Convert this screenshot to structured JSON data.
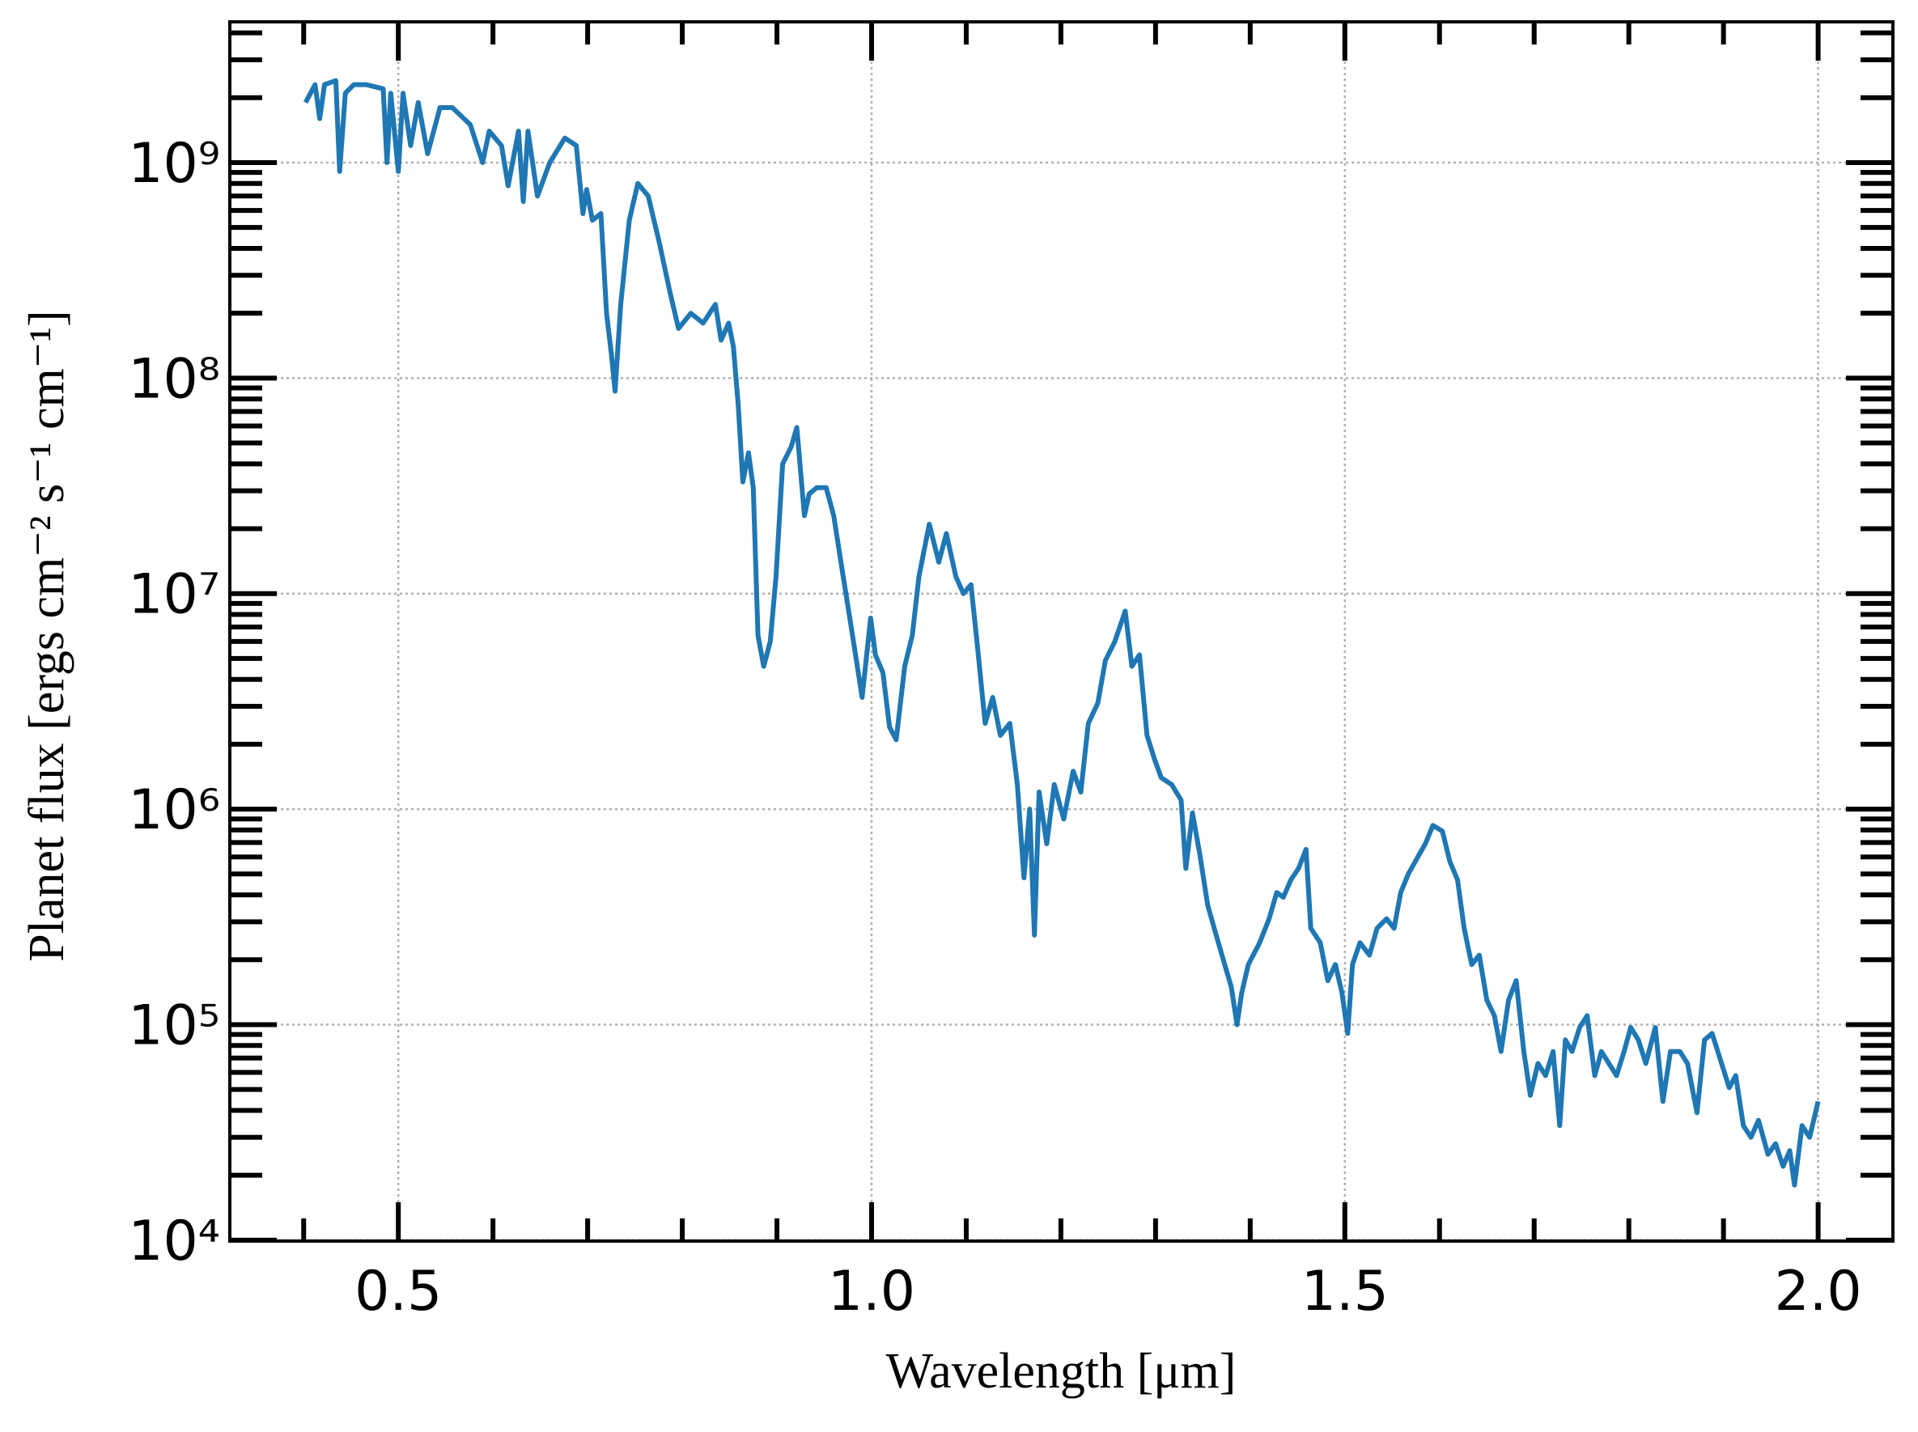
{
  "chart_data": {
    "type": "line",
    "xlabel": "Wavelength [μm]",
    "ylabel": "Planet flux [ergs cm⁻² s⁻¹ cm⁻¹]",
    "color": "#1f77b4",
    "yscale": "log",
    "grid": true,
    "xlim": [
      0.322,
      2.079
    ],
    "ylim": [
      9900,
      4500000000
    ],
    "xticks": [
      0.5,
      {
        "value": 1.0,
        "label": "1.0"
      },
      1.5,
      {
        "value": 2.0,
        "label": "2.0"
      }
    ],
    "xminorticks": [
      0.4,
      0.6,
      0.7,
      0.8,
      0.9,
      1.1,
      1.2,
      1.3,
      1.4,
      1.6,
      1.7,
      1.8,
      1.9
    ],
    "yticks": [
      {
        "value": 10000,
        "label": "10⁴"
      },
      {
        "value": 100000,
        "label": "10⁵"
      },
      {
        "value": 1000000,
        "label": "10⁶"
      },
      {
        "value": 10000000,
        "label": "10⁷"
      },
      {
        "value": 100000000,
        "label": "10⁸"
      },
      {
        "value": 1000000000,
        "label": "10⁹"
      }
    ],
    "yminorticks": [
      20000,
      30000,
      40000,
      50000,
      60000,
      70000,
      80000,
      90000,
      200000,
      300000,
      400000,
      500000,
      600000,
      700000,
      800000,
      900000,
      2000000,
      3000000,
      4000000,
      5000000,
      6000000,
      7000000,
      8000000,
      9000000,
      20000000,
      30000000,
      40000000,
      50000000,
      60000000,
      70000000,
      80000000,
      90000000,
      200000000,
      300000000,
      400000000,
      500000000,
      600000000,
      700000000,
      800000000,
      900000000,
      2000000000,
      3000000000,
      4000000000
    ],
    "x": [
      0.402,
      0.412,
      0.417,
      0.422,
      0.434,
      0.438,
      0.444,
      0.453,
      0.466,
      0.484,
      0.488,
      0.492,
      0.5,
      0.505,
      0.513,
      0.521,
      0.531,
      0.544,
      0.557,
      0.576,
      0.589,
      0.596,
      0.609,
      0.616,
      0.627,
      0.632,
      0.637,
      0.647,
      0.66,
      0.676,
      0.688,
      0.695,
      0.699,
      0.705,
      0.714,
      0.72,
      0.725,
      0.729,
      0.735,
      0.744,
      0.753,
      0.764,
      0.776,
      0.787,
      0.796,
      0.809,
      0.822,
      0.835,
      0.841,
      0.849,
      0.854,
      0.859,
      0.864,
      0.87,
      0.875,
      0.88,
      0.886,
      0.893,
      0.899,
      0.906,
      0.915,
      0.921,
      0.929,
      0.934,
      0.942,
      0.952,
      0.96,
      0.97,
      0.978,
      0.99,
      0.999,
      1.004,
      1.012,
      1.019,
      1.026,
      1.035,
      1.043,
      1.05,
      1.061,
      1.071,
      1.079,
      1.089,
      1.097,
      1.105,
      1.112,
      1.12,
      1.128,
      1.136,
      1.146,
      1.154,
      1.161,
      1.167,
      1.172,
      1.177,
      1.185,
      1.193,
      1.203,
      1.213,
      1.221,
      1.229,
      1.239,
      1.247,
      1.257,
      1.268,
      1.275,
      1.283,
      1.291,
      1.299,
      1.306,
      1.317,
      1.327,
      1.332,
      1.339,
      1.347,
      1.355,
      1.362,
      1.373,
      1.38,
      1.386,
      1.391,
      1.398,
      1.41,
      1.42,
      1.428,
      1.435,
      1.443,
      1.451,
      1.459,
      1.464,
      1.474,
      1.482,
      1.49,
      1.497,
      1.503,
      1.508,
      1.516,
      1.526,
      1.534,
      1.544,
      1.552,
      1.559,
      1.567,
      1.578,
      1.585,
      1.593,
      1.603,
      1.611,
      1.619,
      1.626,
      1.634,
      1.642,
      1.65,
      1.658,
      1.665,
      1.673,
      1.681,
      1.689,
      1.696,
      1.704,
      1.712,
      1.72,
      1.727,
      1.733,
      1.74,
      1.748,
      1.756,
      1.764,
      1.771,
      1.779,
      1.787,
      1.795,
      1.802,
      1.81,
      1.818,
      1.828,
      1.836,
      1.844,
      1.854,
      1.862,
      1.872,
      1.88,
      1.888,
      1.898,
      1.906,
      1.913,
      1.921,
      1.929,
      1.937,
      1.947,
      1.955,
      1.963,
      1.97,
      1.975,
      1.983,
      1.991,
      2.0
    ],
    "values": [
      1900000000.0,
      2300000000.0,
      1600000000.0,
      2300000000.0,
      2400000000.0,
      910000000.0,
      2100000000.0,
      2300000000.0,
      2300000000.0,
      2200000000.0,
      1000000000.0,
      2100000000.0,
      910000000.0,
      2100000000.0,
      1200000000.0,
      1900000000.0,
      1100000000.0,
      1800000000.0,
      1800000000.0,
      1500000000.0,
      1000000000.0,
      1400000000.0,
      1200000000.0,
      780000000.0,
      1400000000.0,
      660000000.0,
      1400000000.0,
      700000000.0,
      1000000000.0,
      1300000000.0,
      1200000000.0,
      580000000.0,
      750000000.0,
      540000000.0,
      580000000.0,
      200000000.0,
      130000000.0,
      87000000.0,
      220000000.0,
      540000000.0,
      800000000.0,
      700000000.0,
      420000000.0,
      250000000.0,
      170000000.0,
      200000000.0,
      180000000.0,
      220000000.0,
      150000000.0,
      180000000.0,
      140000000.0,
      76000000.0,
      33000000.0,
      45000000.0,
      31000000.0,
      6400000.0,
      4600000.0,
      6000000.0,
      12000000.0,
      40000000.0,
      48000000.0,
      59000000.0,
      23000000.0,
      29000000.0,
      31000000.0,
      31000000.0,
      23000000.0,
      12000000.0,
      7200000.0,
      3300000.0,
      7700000.0,
      5200000.0,
      4300000.0,
      2400000.0,
      2100000.0,
      4600000.0,
      6400000.0,
      12000000.0,
      21000000.0,
      14000000.0,
      19000000.0,
      12000000.0,
      10000000.0,
      11000000.0,
      5600000.0,
      2500000.0,
      3300000.0,
      2200000.0,
      2500000.0,
      1300000.0,
      480000.0,
      1000000.0,
      260000.0,
      1200000.0,
      690000.0,
      1300000.0,
      900000.0,
      1500000.0,
      1200000.0,
      2500000.0,
      3100000.0,
      4900000.0,
      6000000.0,
      8300000.0,
      4600000.0,
      5200000.0,
      2200000.0,
      1700000.0,
      1400000.0,
      1300000.0,
      1100000.0,
      530000.0,
      960000.0,
      610000.0,
      360000.0,
      280000.0,
      190000.0,
      150000.0,
      100000.0,
      140000.0,
      190000.0,
      240000.0,
      310000.0,
      410000.0,
      390000.0,
      470000.0,
      530000.0,
      650000.0,
      280000.0,
      240000.0,
      160000.0,
      190000.0,
      140000.0,
      91000.0,
      190000.0,
      240000.0,
      210000.0,
      280000.0,
      310000.0,
      280000.0,
      410000.0,
      500000.0,
      610000.0,
      690000.0,
      840000.0,
      790000.0,
      570000.0,
      470000.0,
      280000.0,
      190000.0,
      210000.0,
      130000.0,
      110000.0,
      75000.0,
      130000.0,
      160000.0,
      75000.0,
      47000.0,
      66000.0,
      58000.0,
      75000.0,
      34000.0,
      85000.0,
      75000.0,
      97000.0,
      110000.0,
      58000.0,
      75000.0,
      66000.0,
      58000.0,
      75000.0,
      97000.0,
      85000.0,
      66000.0,
      97000.0,
      44000.0,
      75000.0,
      75000.0,
      66000.0,
      39000.0,
      85000.0,
      91000.0,
      66000.0,
      51000.0,
      58000.0,
      34000.0,
      30000.0,
      36000.0,
      25000.0,
      28000.0,
      22000.0,
      26000.0,
      18000.0,
      34000.0,
      30000.0,
      44000.0
    ]
  }
}
